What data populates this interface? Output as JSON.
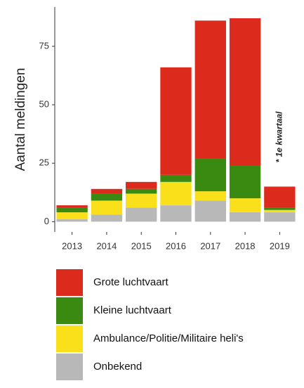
{
  "chart_data": {
    "type": "stacked_bar",
    "y_label": "Aantal meldingen",
    "annotation": "* 1e kwartaal",
    "categories": [
      "2013",
      "2014",
      "2015",
      "2016",
      "2017",
      "2018",
      "2019"
    ],
    "series": [
      {
        "name": "Onbekend",
        "color": "#b8b8b8",
        "values": [
          1,
          3,
          6,
          7,
          9,
          4,
          4
        ]
      },
      {
        "name": "Ambulance/Politie/Militaire heli's",
        "color": "#f9e01b",
        "values": [
          3,
          6,
          6,
          10,
          4,
          6,
          1
        ]
      },
      {
        "name": "Kleine luchtvaart",
        "color": "#3a8a12",
        "values": [
          2,
          3,
          2,
          3,
          14,
          14,
          1
        ]
      },
      {
        "name": "Grote luchtvaart",
        "color": "#dc2a1c",
        "values": [
          1,
          2,
          3,
          46,
          59,
          63,
          9
        ]
      }
    ],
    "ylim": [
      -4.4,
      91.8
    ],
    "yticks": [
      0,
      25,
      50,
      75
    ],
    "grid": false
  }
}
